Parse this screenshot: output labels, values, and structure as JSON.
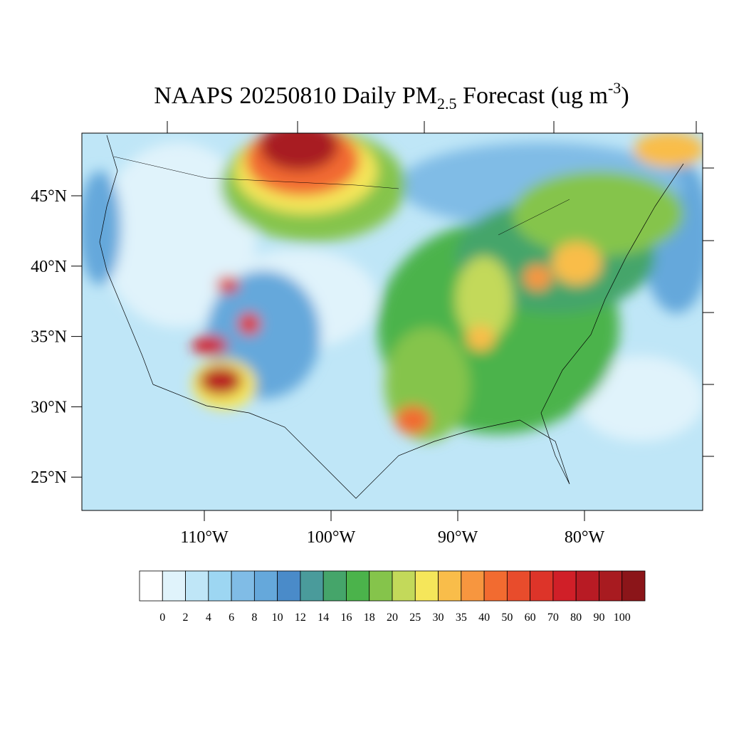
{
  "map": {
    "title": {
      "main": "NAAPS 20250810 Daily PM",
      "sub": "2.5",
      "after": " Forecast (ug m",
      "sup": "-3",
      "close": ")"
    },
    "lat_ticks": [
      {
        "value": 45,
        "label": "45°N"
      },
      {
        "value": 40,
        "label": "40°N"
      },
      {
        "value": 35,
        "label": "35°N"
      },
      {
        "value": 30,
        "label": "30°N"
      },
      {
        "value": 25,
        "label": "25°N"
      }
    ],
    "lon_ticks": [
      {
        "value": -110,
        "label": "110°W"
      },
      {
        "value": -100,
        "label": "100°W"
      },
      {
        "value": -90,
        "label": "90°W"
      },
      {
        "value": -80,
        "label": "80°W"
      }
    ]
  },
  "colorbar": {
    "levels": [
      0,
      2,
      4,
      6,
      8,
      10,
      12,
      14,
      16,
      18,
      20,
      25,
      30,
      35,
      40,
      50,
      60,
      70,
      80,
      90,
      100
    ],
    "colors": [
      "#ffffff",
      "#e0f3fb",
      "#bfe6f7",
      "#9dd6f2",
      "#80bce6",
      "#65a8db",
      "#4a8bc9",
      "#4a9b9b",
      "#45a56a",
      "#4bb34b",
      "#85c44b",
      "#c3d95a",
      "#f5e65a",
      "#f9bd4a",
      "#f7963f",
      "#f26b30",
      "#e84c2c",
      "#dd3429",
      "#d01f28",
      "#b81b24",
      "#a81b20",
      "#8b1519"
    ]
  }
}
